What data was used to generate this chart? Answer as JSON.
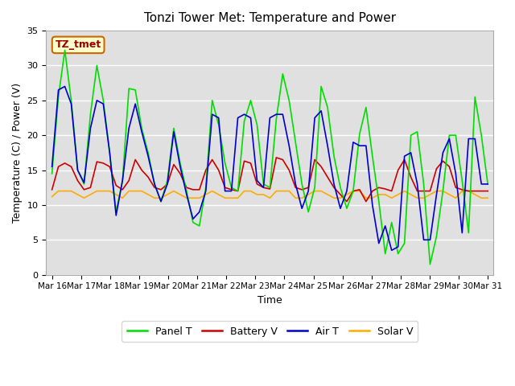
{
  "title": "Tonzi Tower Met: Temperature and Power",
  "xlabel": "Time",
  "ylabel": "Temperature (C) / Power (V)",
  "annotation": "TZ_tmet",
  "ylim": [
    0,
    35
  ],
  "bg_color": "#e0e0e0",
  "fig_color": "#ffffff",
  "xtick_labels": [
    "Mar 16",
    "Mar 17",
    "Mar 18",
    "Mar 19",
    "Mar 20",
    "Mar 21",
    "Mar 22",
    "Mar 23",
    "Mar 24",
    "Mar 25",
    "Mar 26",
    "Mar 27",
    "Mar 28",
    "Mar 29",
    "Mar 30",
    "Mar 31"
  ],
  "legend": [
    {
      "label": "Panel T",
      "color": "#00dd00"
    },
    {
      "label": "Battery V",
      "color": "#cc0000"
    },
    {
      "label": "Air T",
      "color": "#0000cc"
    },
    {
      "label": "Solar V",
      "color": "#ffaa00"
    }
  ],
  "series": {
    "panel_t": [
      14.5,
      25.5,
      32.2,
      25.0,
      15.0,
      13.0,
      23.0,
      30.0,
      25.0,
      17.5,
      9.0,
      13.5,
      26.7,
      26.5,
      21.0,
      17.5,
      13.0,
      10.5,
      13.5,
      21.0,
      16.0,
      12.0,
      7.5,
      7.0,
      12.5,
      25.0,
      21.5,
      16.0,
      12.5,
      12.0,
      22.0,
      25.0,
      21.5,
      13.0,
      12.5,
      22.3,
      28.8,
      25.0,
      19.0,
      13.0,
      9.0,
      12.5,
      27.0,
      24.0,
      17.0,
      12.5,
      9.5,
      12.0,
      20.2,
      24.0,
      17.0,
      10.5,
      3.0,
      7.5,
      3.0,
      4.5,
      20.0,
      20.5,
      13.0,
      1.5,
      5.5,
      12.0,
      20.0,
      20.0,
      13.5,
      6.0,
      25.5,
      20.0,
      13.0
    ],
    "battery_v": [
      12.2,
      15.5,
      16.0,
      15.5,
      13.5,
      12.2,
      12.5,
      16.2,
      16.0,
      15.5,
      12.8,
      12.2,
      13.5,
      16.5,
      15.0,
      14.0,
      12.5,
      12.2,
      13.0,
      15.8,
      14.5,
      12.5,
      12.2,
      12.2,
      15.0,
      16.5,
      15.0,
      12.5,
      12.2,
      12.0,
      16.3,
      16.0,
      13.0,
      12.5,
      12.3,
      16.8,
      16.5,
      15.0,
      12.5,
      12.2,
      12.5,
      16.5,
      15.5,
      14.0,
      12.5,
      11.5,
      10.5,
      12.0,
      12.2,
      10.5,
      12.0,
      12.5,
      12.3,
      12.0,
      15.0,
      16.5,
      14.0,
      12.0,
      12.0,
      12.0,
      15.2,
      16.3,
      15.5,
      12.5,
      12.2,
      12.0,
      12.0,
      12.0,
      12.0
    ],
    "air_t": [
      15.5,
      26.5,
      27.0,
      24.5,
      15.0,
      13.2,
      21.0,
      25.0,
      24.5,
      17.5,
      8.5,
      13.5,
      21.0,
      24.5,
      20.5,
      17.0,
      13.0,
      10.5,
      13.0,
      20.5,
      15.5,
      11.5,
      8.0,
      9.0,
      12.0,
      23.0,
      22.5,
      12.0,
      12.0,
      22.5,
      23.0,
      22.5,
      13.5,
      12.5,
      22.5,
      23.0,
      23.0,
      18.5,
      13.0,
      9.5,
      12.0,
      22.5,
      23.5,
      18.5,
      13.0,
      9.5,
      12.0,
      19.0,
      18.5,
      18.5,
      10.0,
      4.5,
      7.0,
      3.5,
      4.0,
      17.0,
      17.5,
      13.0,
      5.0,
      5.0,
      11.5,
      17.5,
      19.5,
      14.5,
      6.0,
      19.5,
      19.5,
      13.0,
      13.0
    ],
    "solar_v": [
      11.2,
      12.0,
      12.0,
      12.0,
      11.5,
      11.0,
      11.5,
      12.0,
      12.0,
      12.0,
      11.5,
      11.0,
      12.0,
      12.0,
      12.0,
      11.5,
      11.0,
      11.0,
      11.5,
      12.0,
      11.5,
      11.0,
      11.0,
      11.0,
      11.5,
      12.0,
      11.5,
      11.0,
      11.0,
      11.0,
      12.0,
      12.0,
      11.5,
      11.5,
      11.0,
      12.0,
      12.0,
      12.0,
      11.0,
      11.0,
      11.5,
      12.0,
      12.0,
      11.5,
      11.0,
      11.0,
      11.5,
      12.0,
      12.0,
      11.0,
      11.0,
      11.5,
      11.5,
      11.0,
      11.5,
      12.0,
      11.5,
      11.0,
      11.0,
      11.5,
      12.0,
      12.0,
      11.5,
      11.0,
      12.0,
      12.0,
      11.5,
      11.0,
      11.0
    ]
  }
}
